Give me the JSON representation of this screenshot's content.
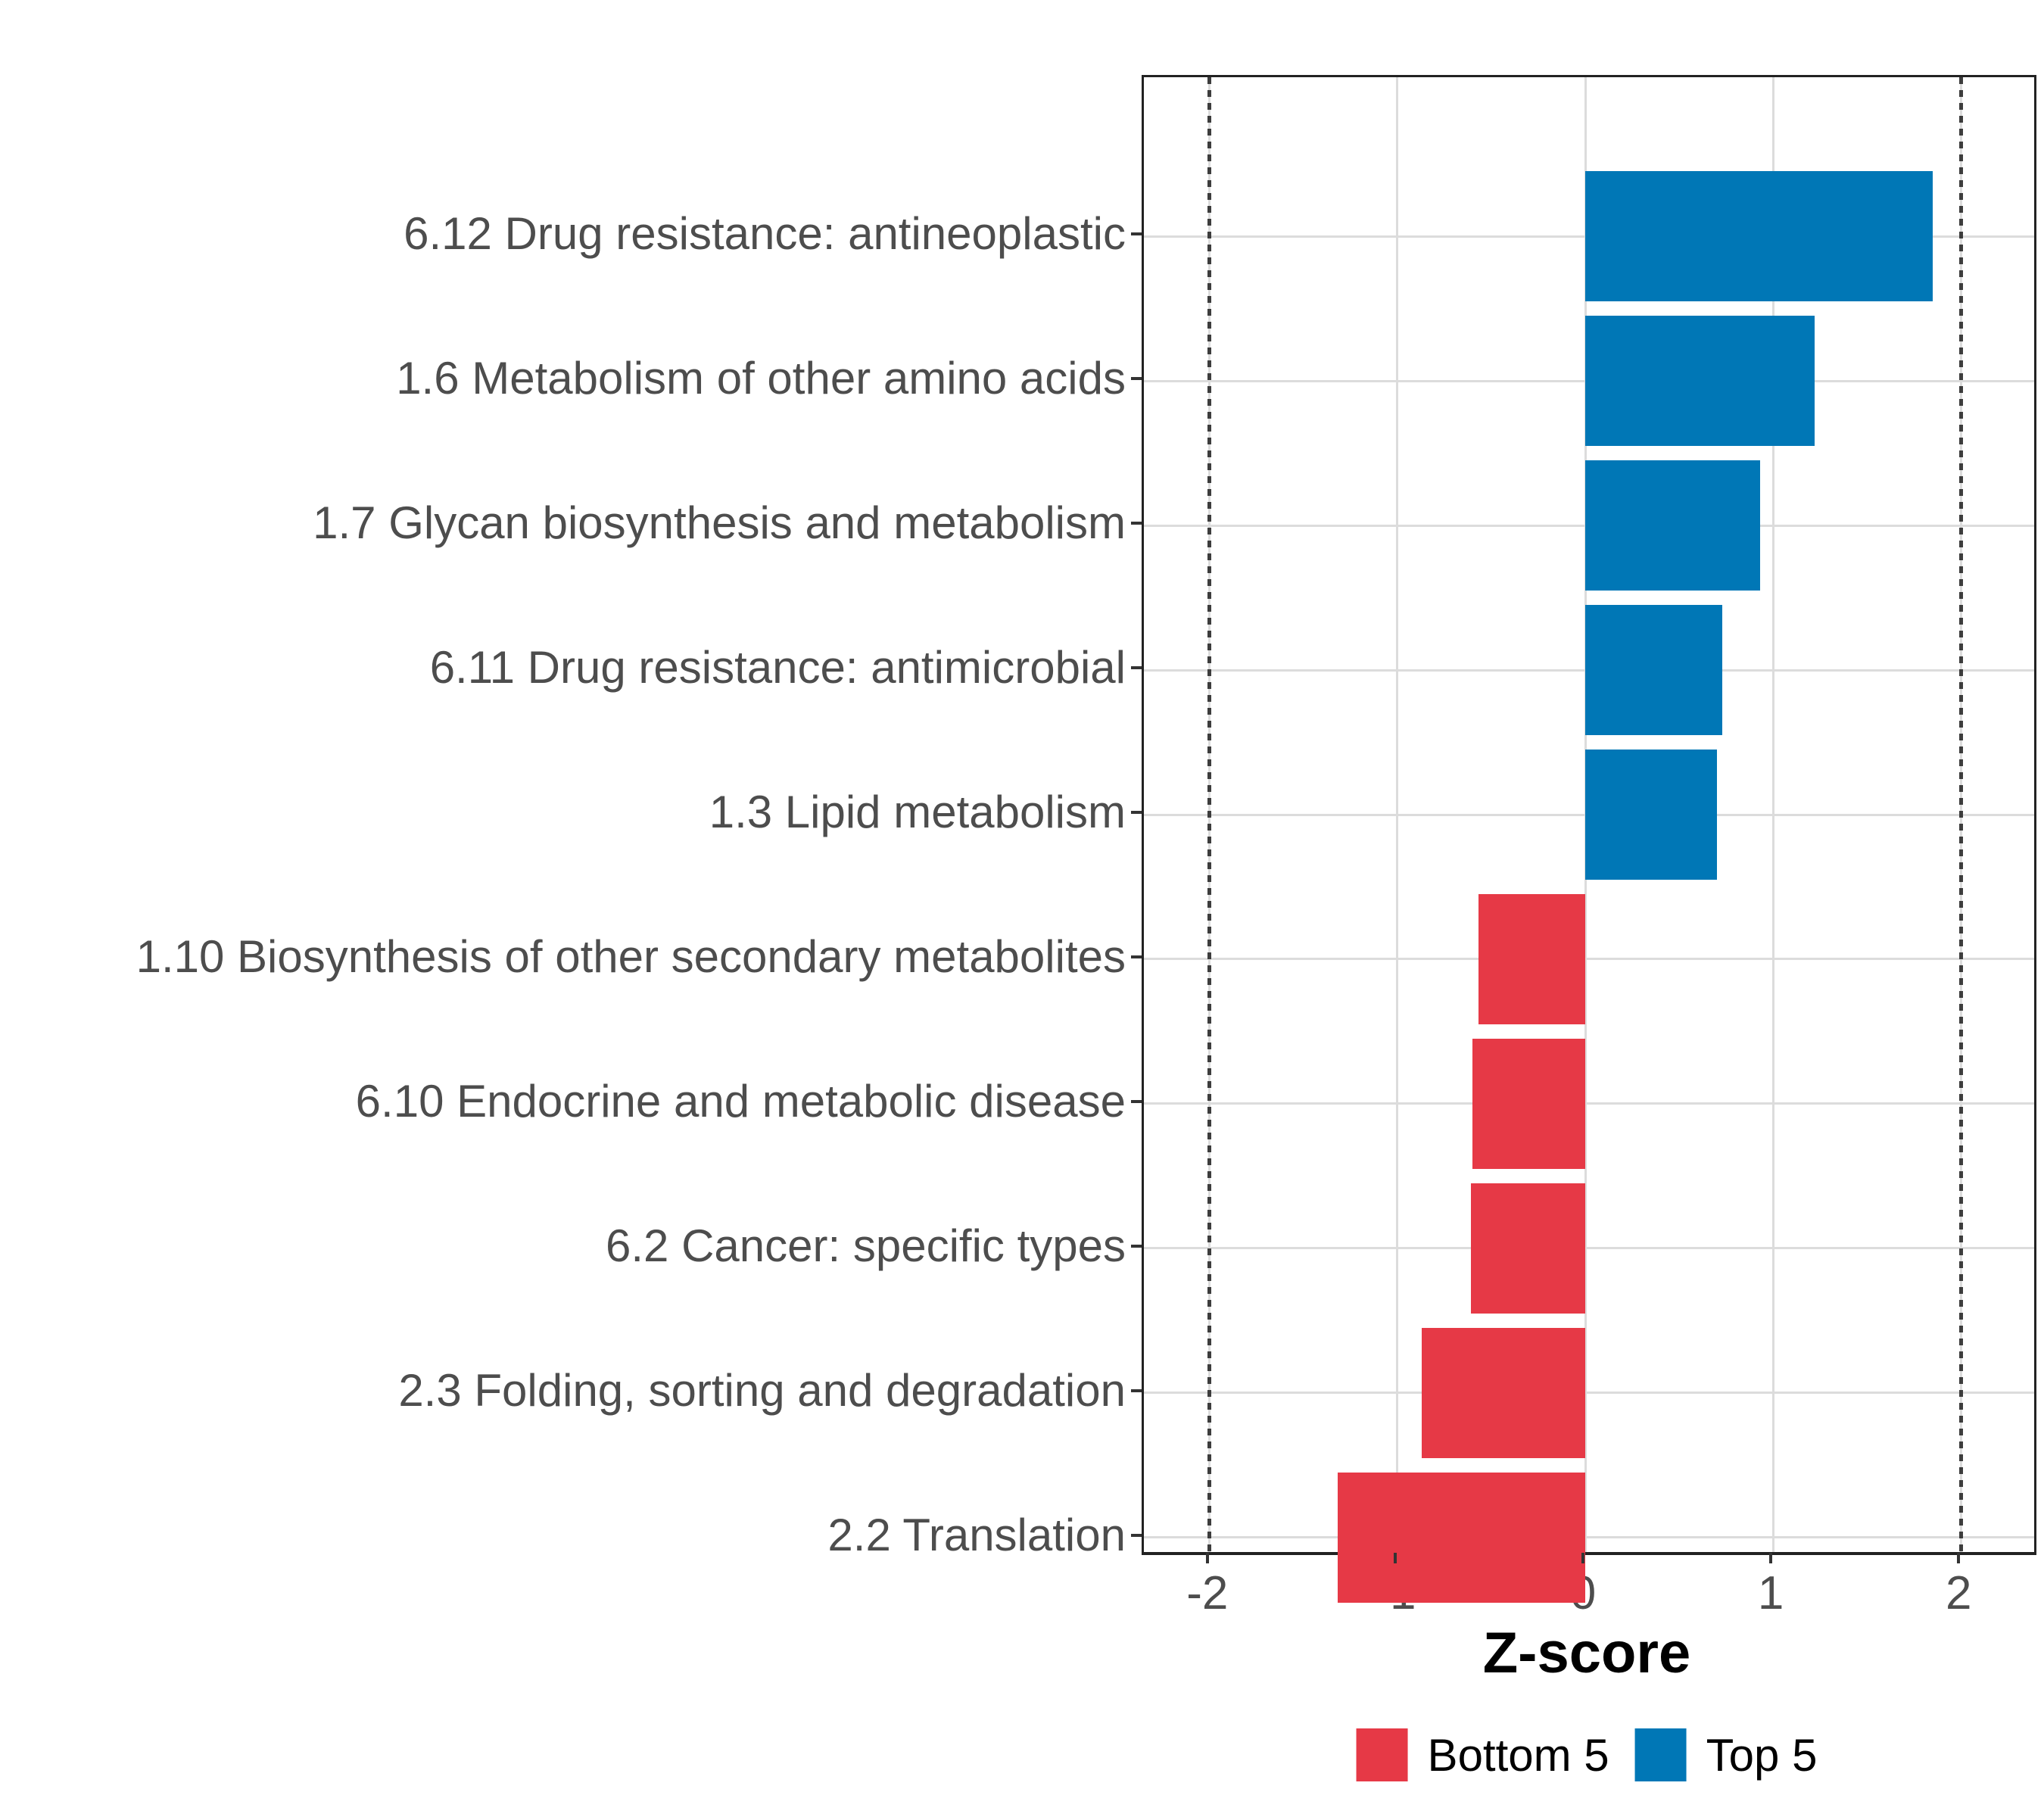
{
  "chart_data": {
    "type": "bar",
    "orientation": "horizontal",
    "xlabel": "Z-score",
    "xlim": [
      -2.35,
      2.39
    ],
    "x_ticks": [
      -2,
      -1,
      0,
      1,
      2
    ],
    "x_tick_labels": [
      "-2",
      "-1",
      "0",
      "1",
      "2"
    ],
    "reference_lines_dotted": [
      -2,
      2
    ],
    "grid": true,
    "legend_position": "bottom",
    "rows": [
      {
        "label": "6.12 Drug resistance: antineoplastic",
        "value": 1.85,
        "group": "Top 5"
      },
      {
        "label": "1.6 Metabolism of other amino acids",
        "value": 1.22,
        "group": "Top 5"
      },
      {
        "label": "1.7 Glycan biosynthesis and metabolism",
        "value": 0.93,
        "group": "Top 5"
      },
      {
        "label": "6.11 Drug resistance: antimicrobial",
        "value": 0.73,
        "group": "Top 5"
      },
      {
        "label": "1.3 Lipid metabolism",
        "value": 0.7,
        "group": "Top 5"
      },
      {
        "label": "1.10 Biosynthesis of other secondary metabolites",
        "value": -0.57,
        "group": "Bottom 5"
      },
      {
        "label": "6.10 Endocrine and metabolic disease",
        "value": -0.6,
        "group": "Bottom 5"
      },
      {
        "label": "6.2 Cancer: specific types",
        "value": -0.61,
        "group": "Bottom 5"
      },
      {
        "label": "2.3 Folding, sorting and degradation",
        "value": -0.87,
        "group": "Bottom 5"
      },
      {
        "label": "2.2 Translation",
        "value": -1.32,
        "group": "Bottom 5"
      }
    ]
  },
  "legend": {
    "items": [
      {
        "label": "Bottom 5",
        "color": "#E63946"
      },
      {
        "label": "Top 5",
        "color": "#0077B6"
      }
    ]
  },
  "colors": {
    "bottom5": "#E63946",
    "top5": "#0077B6",
    "gridline": "#DCDCDC",
    "axis_text": "#4D4D4D",
    "panel_border": "#222222",
    "reference_line": "#3D3D3D",
    "background": "#FFFFFF"
  }
}
